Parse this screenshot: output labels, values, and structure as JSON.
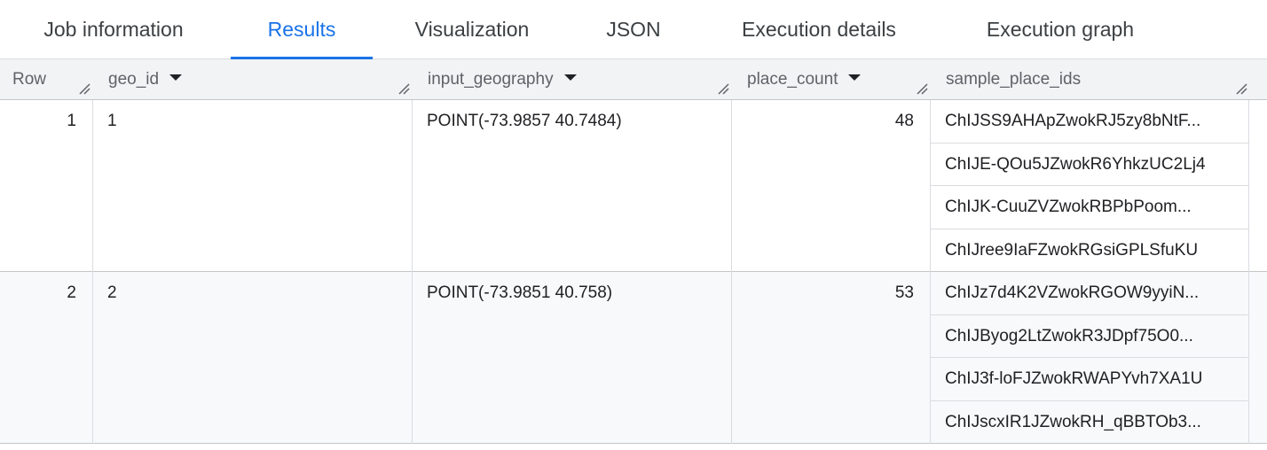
{
  "tabs": [
    {
      "label": "Job information"
    },
    {
      "label": "Results",
      "active": true
    },
    {
      "label": "Visualization"
    },
    {
      "label": "JSON"
    },
    {
      "label": "Execution details"
    },
    {
      "label": "Execution graph"
    }
  ],
  "columns": [
    "Row",
    "geo_id",
    "input_geography",
    "place_count",
    "sample_place_ids"
  ],
  "rows": [
    {
      "row": "1",
      "geo_id": "1",
      "input_geography": "POINT(-73.9857 40.7484)",
      "place_count": "48",
      "sample_place_ids": [
        "ChIJSS9AHApZwokRJ5zy8bNtF...",
        "ChIJE-QOu5JZwokR6YhkzUC2Lj4",
        "ChIJK-CuuZVZwokRBPbPoom...",
        "ChIJree9IaFZwokRGsiGPLSfuKU"
      ]
    },
    {
      "row": "2",
      "geo_id": "2",
      "input_geography": "POINT(-73.9851 40.758)",
      "place_count": "53",
      "sample_place_ids": [
        "ChIJz7d4K2VZwokRGOW9yyiN...",
        "ChIJByog2LtZwokR3JDpf75O0...",
        "ChIJ3f-loFJZwokRWAPYvh7XA1U",
        "ChIJscxIR1JZwokRH_qBBTOb3..."
      ]
    }
  ],
  "colors": {
    "accent": "#1a73e8",
    "header_bg": "#f1f3f4",
    "alt_row_bg": "#f8f9fa"
  }
}
